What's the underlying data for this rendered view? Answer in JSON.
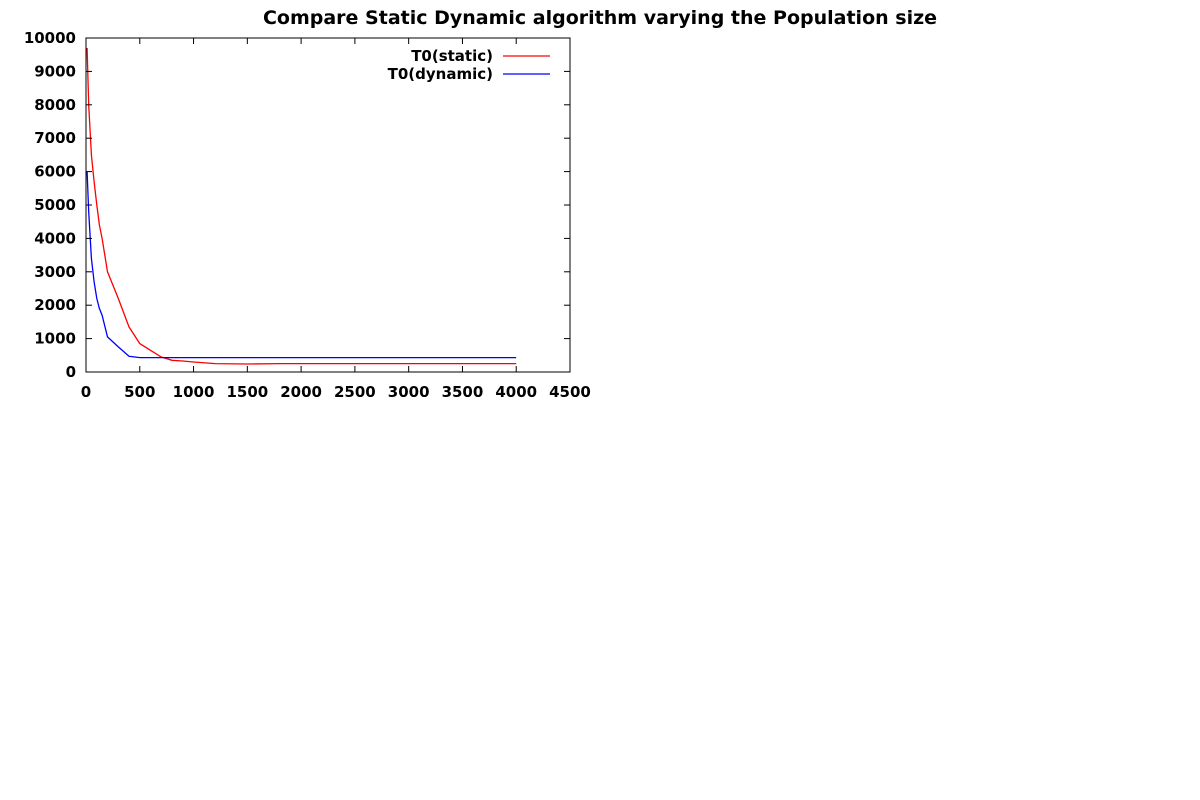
{
  "chart_data": {
    "type": "line",
    "title": "Compare Static  Dynamic algorithm varying the Population size",
    "xlabel": "",
    "ylabel": "",
    "xlim": [
      0,
      4500
    ],
    "ylim": [
      0,
      10000
    ],
    "xticks": [
      0,
      500,
      1000,
      1500,
      2000,
      2500,
      3000,
      3500,
      4000,
      4500
    ],
    "yticks": [
      0,
      1000,
      2000,
      3000,
      4000,
      5000,
      6000,
      7000,
      8000,
      9000,
      10000
    ],
    "grid": false,
    "legend_position": "top-right",
    "series": [
      {
        "name": "T0(static)",
        "color": "#ff0000",
        "x": [
          10,
          25,
          50,
          75,
          100,
          125,
          150,
          200,
          300,
          400,
          500,
          600,
          700,
          800,
          900,
          1000,
          1200,
          1500,
          1800,
          2000,
          2500,
          3000,
          3500,
          4000
        ],
        "y": [
          9700,
          8000,
          6500,
          5700,
          5000,
          4400,
          4000,
          3000,
          2200,
          1350,
          850,
          650,
          450,
          350,
          330,
          300,
          250,
          240,
          250,
          250,
          250,
          250,
          250,
          250
        ]
      },
      {
        "name": "T0(dynamic)",
        "color": "#0000ff",
        "x": [
          10,
          25,
          50,
          75,
          100,
          125,
          150,
          200,
          300,
          400,
          500,
          600,
          700,
          800,
          1000,
          1500,
          2000,
          2500,
          3000,
          3500,
          4000
        ],
        "y": [
          6000,
          4800,
          3400,
          2700,
          2200,
          1900,
          1700,
          1050,
          750,
          470,
          430,
          430,
          430,
          430,
          430,
          430,
          430,
          430,
          430,
          430,
          430
        ]
      }
    ]
  }
}
